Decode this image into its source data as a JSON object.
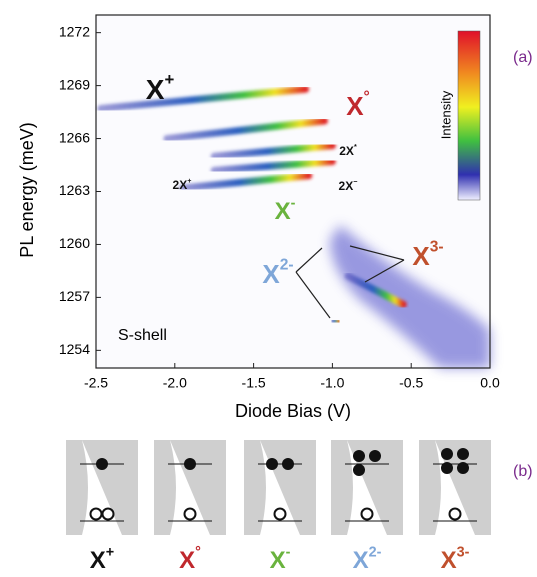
{
  "chart_data": {
    "type": "intensity_map",
    "ylabel": "PL energy (meV)",
    "xlabel": "Diode Bias (V)",
    "xlim": [
      -2.5,
      0
    ],
    "ylim": [
      1253,
      1273
    ],
    "xticks": [
      -2.5,
      {
        "value": -2,
        "label": "-2.0"
      },
      -1.5,
      {
        "value": -1,
        "label": "-1.0"
      },
      -0.5,
      {
        "value": 0,
        "label": "0.0"
      }
    ],
    "yticks": [
      1254,
      1257,
      1260,
      1263,
      1266,
      1269,
      1272
    ],
    "colorbar_label": "Intensity",
    "panel_a": "(a)",
    "panel_b": "(b)",
    "shell_label": "S-shell",
    "streaks": [
      {
        "x": [
          -2.47,
          -1.17
        ],
        "y": [
          1267.7,
          1268.8
        ]
      },
      {
        "x": [
          -2.05,
          -1.05
        ],
        "y": [
          1266.0,
          1267.0
        ]
      },
      {
        "x": [
          -1.75,
          -1.0
        ],
        "y": [
          1265.0,
          1265.6
        ]
      },
      {
        "x": [
          -1.75,
          -1.0
        ],
        "y": [
          1264.2,
          1264.7
        ]
      },
      {
        "x": [
          -1.95,
          -1.15
        ],
        "y": [
          1263.2,
          1263.9
        ]
      },
      {
        "x": [
          -1.2,
          -1.05
        ],
        "y": [
          1260.8,
          1260.8
        ]
      },
      {
        "x": [
          -1.0,
          -0.9
        ],
        "y": [
          1260.3,
          1260.3
        ]
      },
      {
        "x": [
          -0.9,
          -0.55
        ],
        "y": [
          1258.2,
          1256.6
        ]
      },
      {
        "x": [
          -1.0,
          -0.96
        ],
        "y": [
          1255.7,
          1255.6
        ]
      }
    ],
    "annotations": [
      {
        "base": "X",
        "sup": "+",
        "color": "#111111"
      },
      {
        "base": "X",
        "sup": "°",
        "color": "#c0282d"
      },
      {
        "base": "2X",
        "sup": "*",
        "color": "#111111"
      },
      {
        "base": "2X",
        "sup": "+",
        "color": "#111111"
      },
      {
        "base": "2X",
        "sup": "−",
        "color": "#111111"
      },
      {
        "base": "X",
        "sup": "-",
        "color": "#6ab33e"
      },
      {
        "base": "X",
        "sup": "2-",
        "color": "#7ea6d8"
      },
      {
        "base": "X",
        "sup": "3-",
        "color": "#c0502d"
      }
    ],
    "states": [
      {
        "base": "X",
        "sup": "+",
        "color": "#111111"
      },
      {
        "base": "X",
        "sup": "°",
        "color": "#c0282d"
      },
      {
        "base": "X",
        "sup": "-",
        "color": "#6ab33e"
      },
      {
        "base": "X",
        "sup": "2-",
        "color": "#7ea6d8"
      },
      {
        "base": "X",
        "sup": "3-",
        "color": "#c0502d"
      }
    ]
  }
}
